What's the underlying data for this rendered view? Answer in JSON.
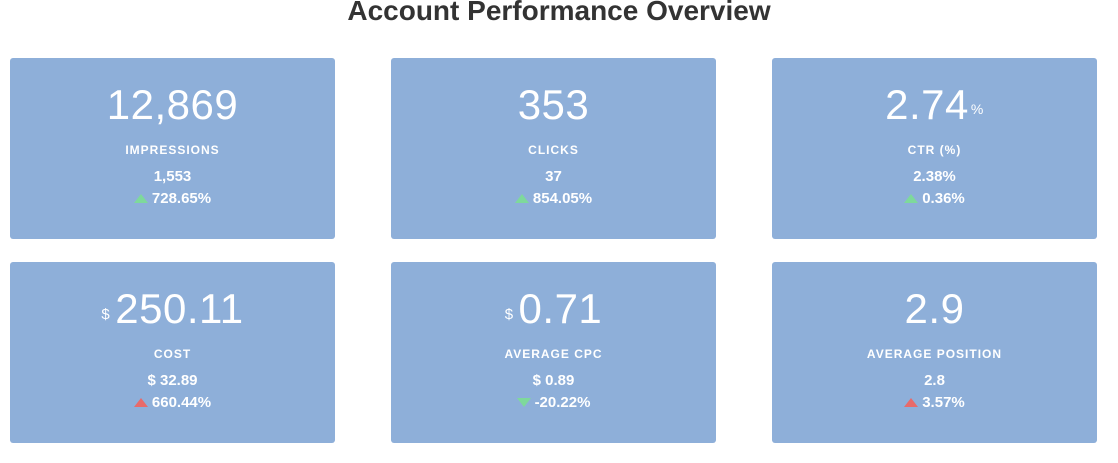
{
  "title": "Account Performance Overview",
  "colors": {
    "card_background": "#8eafd9",
    "positive": "#7ed99b",
    "negative": "#e86a6a",
    "title_text": "#333333"
  },
  "cards": [
    {
      "value": "12,869",
      "prefix": "",
      "suffix": "",
      "label": "IMPRESSIONS",
      "previous": "1,553",
      "change": "728.65%",
      "arrow_icon": "up-green"
    },
    {
      "value": "353",
      "prefix": "",
      "suffix": "",
      "label": "CLICKS",
      "previous": "37",
      "change": "854.05%",
      "arrow_icon": "up-green"
    },
    {
      "value": "2.74",
      "prefix": "",
      "suffix": "%",
      "label": "CTR (%)",
      "previous": "2.38%",
      "change": "0.36%",
      "arrow_icon": "up-green"
    },
    {
      "value": "250.11",
      "prefix": "$",
      "suffix": "",
      "label": "COST",
      "previous": "$ 32.89",
      "change": "660.44%",
      "arrow_icon": "up-red"
    },
    {
      "value": "0.71",
      "prefix": "$",
      "suffix": "",
      "label": "AVERAGE CPC",
      "previous": "$ 0.89",
      "change": "-20.22%",
      "arrow_icon": "down-green"
    },
    {
      "value": "2.9",
      "prefix": "",
      "suffix": "",
      "label": "AVERAGE POSITION",
      "previous": "2.8",
      "change": "3.57%",
      "arrow_icon": "up-red"
    }
  ]
}
